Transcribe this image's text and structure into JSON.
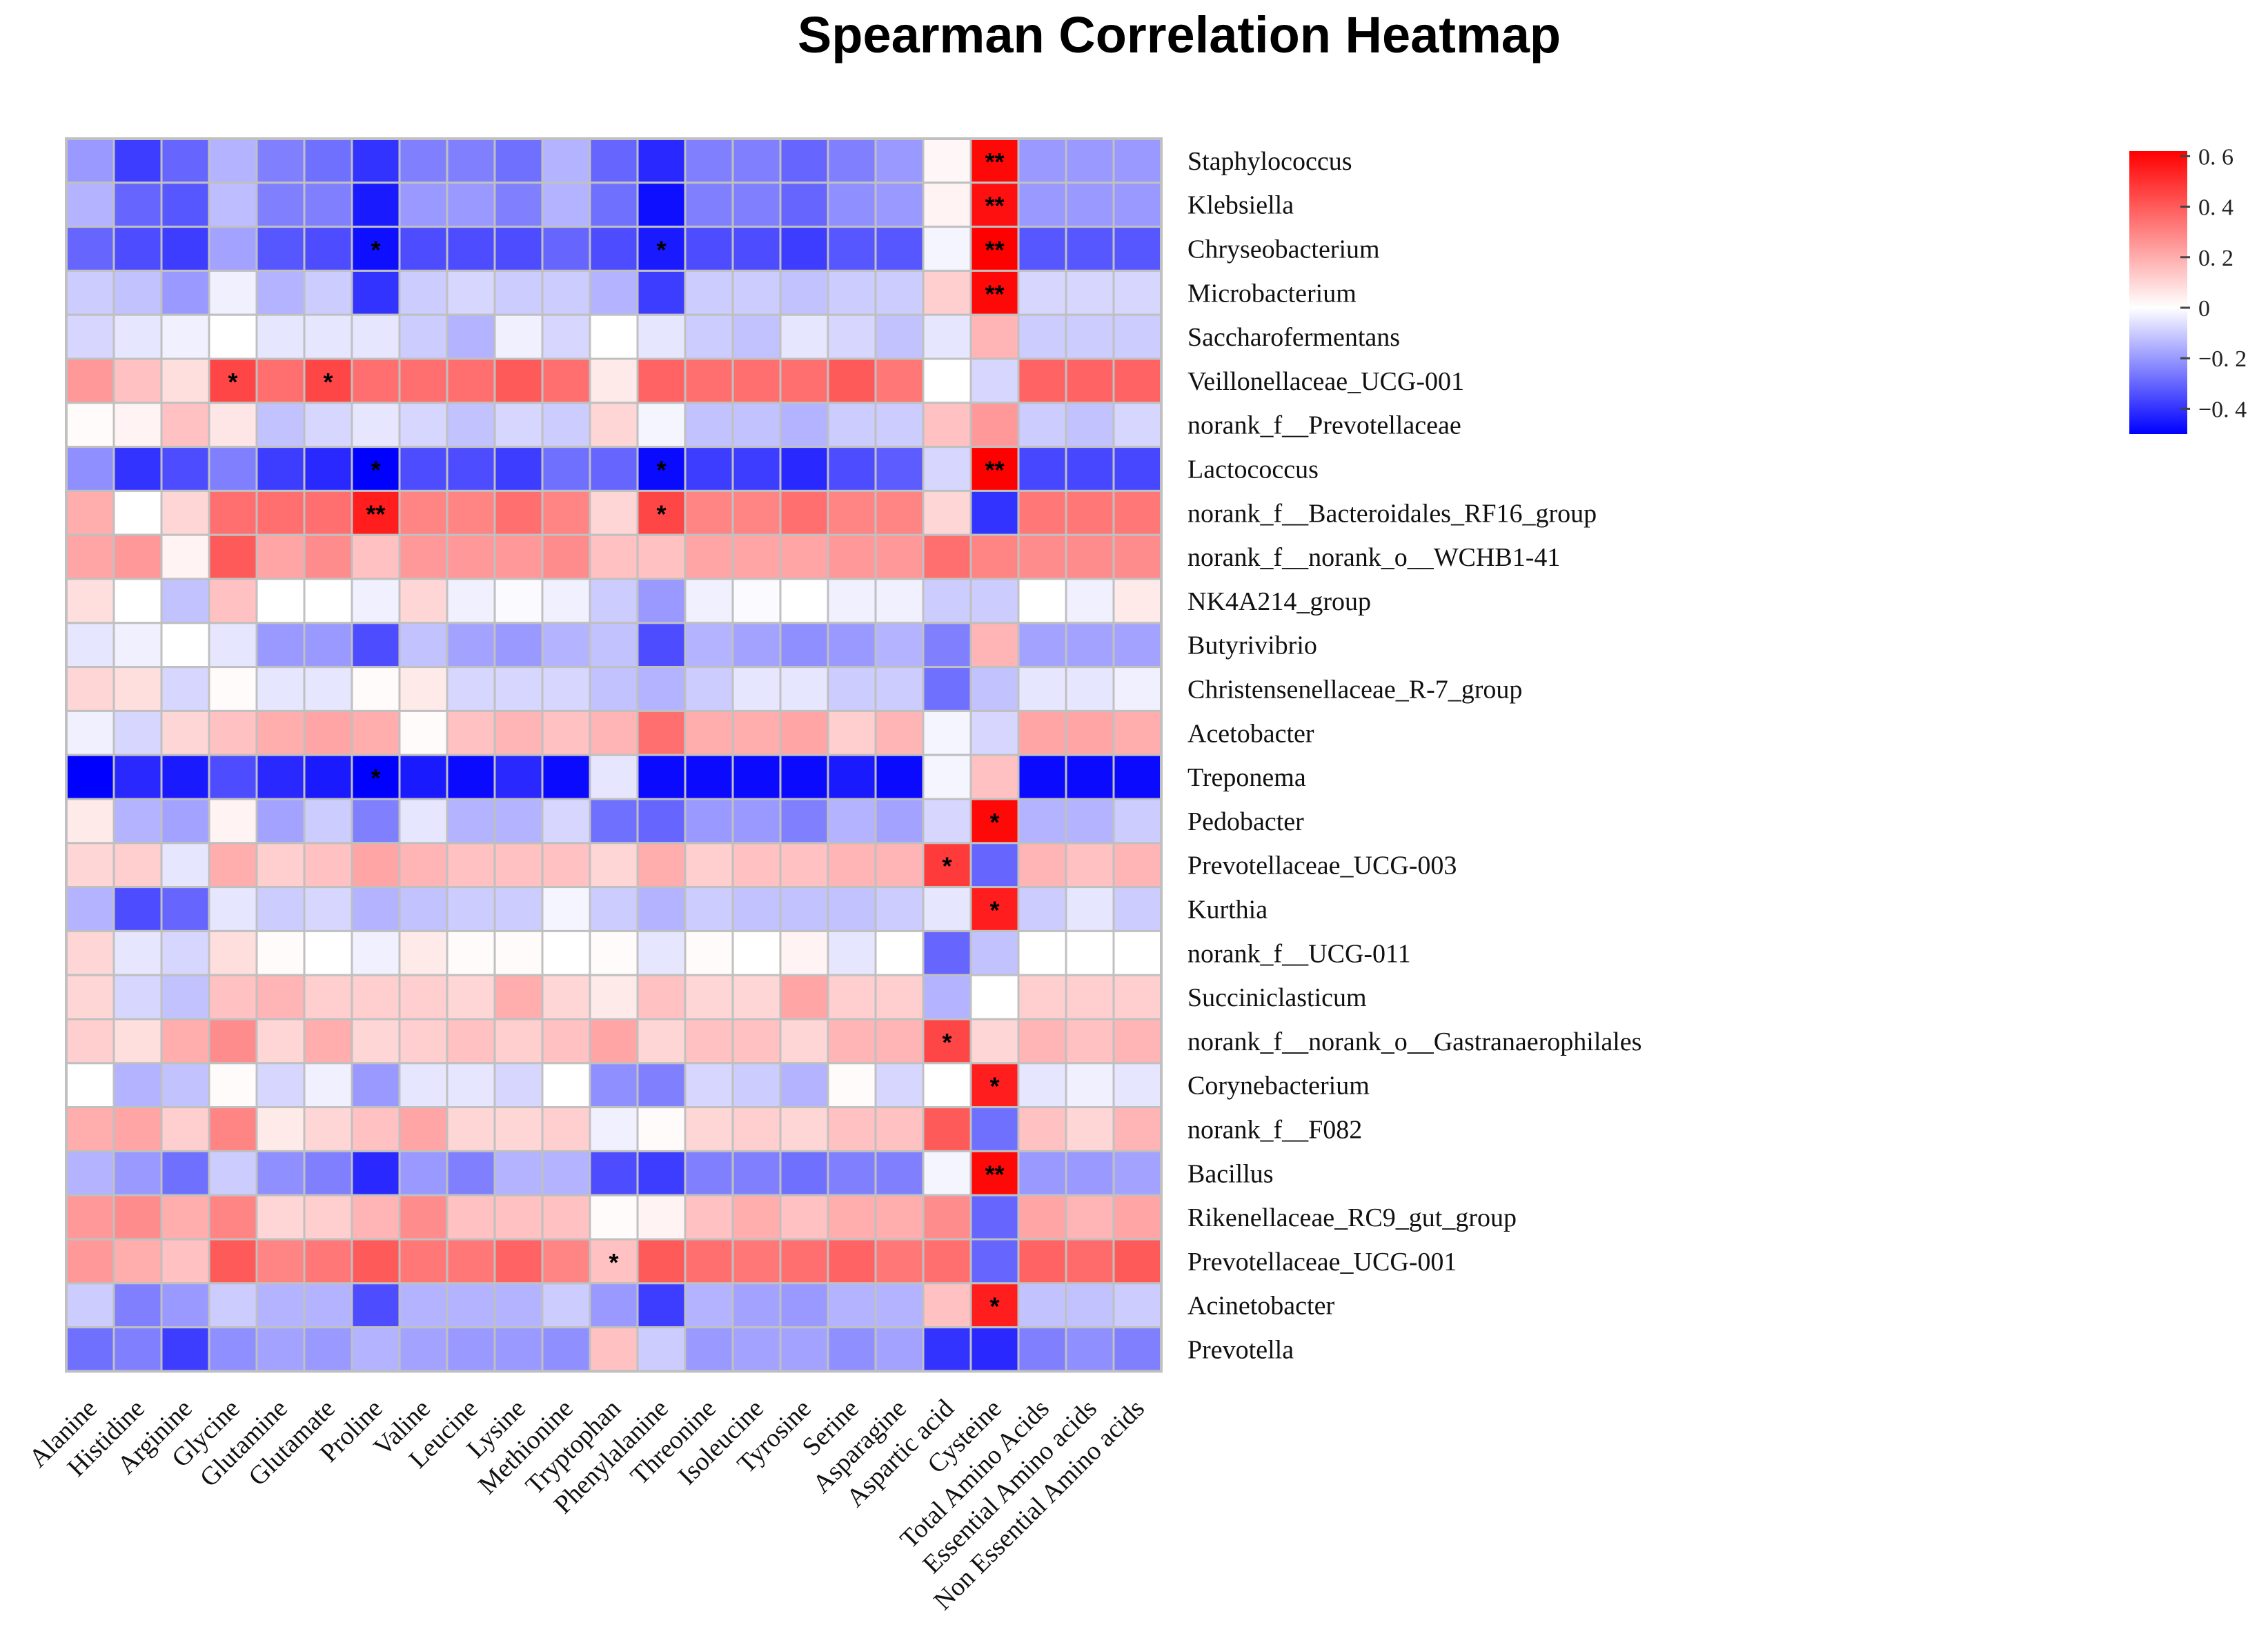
{
  "chart_data": {
    "type": "heatmap",
    "title": "Spearman Correlation Heatmap",
    "columns": [
      "Alanine",
      "Histidine",
      "Arginine",
      "Glycine",
      "Glutamine",
      "Glutamate",
      "Proline",
      "Valine",
      "Leucine",
      "Lysine",
      "Methionine",
      "Tryptophan",
      "Phenylalanine",
      "Threonine",
      "Isoleucine",
      "Tyrosine",
      "Serine",
      "Asparagine",
      "Aspartic acid",
      "Cysteine",
      "Total Amino Acids",
      "Essential Amino acids",
      "Non Essential Amino acids"
    ],
    "rows": [
      "Staphylococcus",
      "Klebsiella",
      "Chryseobacterium",
      "Microbacterium",
      "Saccharofermentans",
      "Veillonellaceae_UCG-001",
      "norank_f__Prevotellaceae",
      "Lactococcus",
      "norank_f__Bacteroidales_RF16_group",
      "norank_f__norank_o__WCHB1-41",
      "NK4A214_group",
      "Butyrivibrio",
      "Christensenellaceae_R-7_group",
      "Acetobacter",
      "Treponema",
      "Pedobacter",
      "Prevotellaceae_UCG-003",
      "Kurthia",
      "norank_f__UCG-011",
      "Succiniclasticum",
      "norank_f__norank_o__Gastranaerophilales",
      "Corynebacterium",
      "norank_f__F082",
      "Bacillus",
      "Rikenellaceae_RC9_gut_group",
      "Prevotellaceae_UCG-001",
      "Acinetobacter",
      "Prevotella"
    ],
    "values": [
      [
        -0.2,
        -0.38,
        -0.3,
        -0.15,
        -0.25,
        -0.28,
        -0.4,
        -0.25,
        -0.25,
        -0.28,
        -0.15,
        -0.3,
        -0.42,
        -0.25,
        -0.25,
        -0.3,
        -0.25,
        -0.2,
        0.02,
        0.6,
        -0.2,
        -0.2,
        -0.2
      ],
      [
        -0.15,
        -0.3,
        -0.33,
        -0.13,
        -0.25,
        -0.25,
        -0.45,
        -0.2,
        -0.2,
        -0.25,
        -0.15,
        -0.28,
        -0.47,
        -0.25,
        -0.25,
        -0.3,
        -0.22,
        -0.2,
        0.03,
        0.58,
        -0.2,
        -0.2,
        -0.2
      ],
      [
        -0.3,
        -0.35,
        -0.38,
        -0.18,
        -0.33,
        -0.35,
        -0.47,
        -0.35,
        -0.35,
        -0.35,
        -0.3,
        -0.35,
        -0.45,
        -0.35,
        -0.35,
        -0.38,
        -0.33,
        -0.33,
        -0.02,
        0.62,
        -0.33,
        -0.33,
        -0.33
      ],
      [
        -0.1,
        -0.12,
        -0.2,
        -0.03,
        -0.15,
        -0.1,
        -0.4,
        -0.1,
        -0.08,
        -0.1,
        -0.1,
        -0.15,
        -0.38,
        -0.1,
        -0.1,
        -0.12,
        -0.1,
        -0.1,
        0.12,
        0.6,
        -0.08,
        -0.08,
        -0.08
      ],
      [
        -0.08,
        -0.05,
        -0.03,
        0.0,
        -0.05,
        -0.05,
        -0.05,
        -0.1,
        -0.15,
        -0.03,
        -0.08,
        0.0,
        -0.05,
        -0.1,
        -0.12,
        -0.05,
        -0.08,
        -0.12,
        -0.05,
        0.18,
        -0.1,
        -0.1,
        -0.1
      ],
      [
        0.25,
        0.15,
        0.08,
        0.45,
        0.35,
        0.45,
        0.35,
        0.35,
        0.35,
        0.4,
        0.35,
        0.05,
        0.38,
        0.35,
        0.35,
        0.35,
        0.4,
        0.33,
        0.0,
        -0.08,
        0.38,
        0.38,
        0.38
      ],
      [
        0.01,
        0.03,
        0.15,
        0.06,
        -0.12,
        -0.08,
        -0.05,
        -0.08,
        -0.12,
        -0.08,
        -0.1,
        0.1,
        -0.02,
        -0.12,
        -0.12,
        -0.15,
        -0.1,
        -0.1,
        0.15,
        0.25,
        -0.1,
        -0.12,
        -0.08
      ],
      [
        -0.22,
        -0.4,
        -0.35,
        -0.25,
        -0.38,
        -0.42,
        -0.5,
        -0.35,
        -0.35,
        -0.38,
        -0.28,
        -0.3,
        -0.48,
        -0.38,
        -0.38,
        -0.42,
        -0.35,
        -0.32,
        -0.08,
        0.62,
        -0.36,
        -0.36,
        -0.36
      ],
      [
        0.2,
        0.0,
        0.1,
        0.35,
        0.35,
        0.35,
        0.55,
        0.3,
        0.3,
        0.35,
        0.3,
        0.1,
        0.45,
        0.3,
        0.3,
        0.35,
        0.3,
        0.3,
        0.1,
        -0.4,
        0.33,
        0.33,
        0.33
      ],
      [
        0.22,
        0.25,
        0.03,
        0.4,
        0.22,
        0.28,
        0.15,
        0.25,
        0.25,
        0.25,
        0.28,
        0.15,
        0.15,
        0.22,
        0.22,
        0.22,
        0.25,
        0.25,
        0.35,
        0.3,
        0.28,
        0.28,
        0.28
      ],
      [
        0.08,
        0.0,
        -0.12,
        0.15,
        0.0,
        0.0,
        -0.03,
        0.1,
        -0.03,
        -0.01,
        -0.03,
        -0.1,
        -0.2,
        -0.03,
        -0.01,
        0.0,
        -0.03,
        -0.03,
        -0.1,
        -0.1,
        0.0,
        -0.03,
        0.05
      ],
      [
        -0.05,
        -0.03,
        0.0,
        -0.05,
        -0.2,
        -0.2,
        -0.35,
        -0.12,
        -0.18,
        -0.2,
        -0.15,
        -0.12,
        -0.35,
        -0.15,
        -0.18,
        -0.22,
        -0.2,
        -0.15,
        -0.25,
        0.18,
        -0.18,
        -0.18,
        -0.18
      ],
      [
        0.1,
        0.08,
        -0.08,
        0.01,
        -0.05,
        -0.05,
        0.01,
        0.05,
        -0.08,
        -0.08,
        -0.08,
        -0.12,
        -0.15,
        -0.1,
        -0.05,
        -0.05,
        -0.1,
        -0.1,
        -0.28,
        -0.12,
        -0.05,
        -0.05,
        -0.03
      ],
      [
        -0.03,
        -0.08,
        0.1,
        0.15,
        0.2,
        0.22,
        0.2,
        0.01,
        0.15,
        0.18,
        0.15,
        0.18,
        0.35,
        0.2,
        0.2,
        0.22,
        0.12,
        0.18,
        -0.02,
        -0.08,
        0.22,
        0.22,
        0.2
      ],
      [
        -0.5,
        -0.42,
        -0.45,
        -0.35,
        -0.42,
        -0.45,
        -0.5,
        -0.45,
        -0.48,
        -0.42,
        -0.48,
        -0.05,
        -0.48,
        -0.48,
        -0.48,
        -0.48,
        -0.45,
        -0.48,
        -0.02,
        0.15,
        -0.48,
        -0.48,
        -0.48
      ],
      [
        0.05,
        -0.15,
        -0.18,
        0.03,
        -0.18,
        -0.1,
        -0.25,
        -0.05,
        -0.15,
        -0.15,
        -0.08,
        -0.28,
        -0.3,
        -0.2,
        -0.2,
        -0.25,
        -0.15,
        -0.18,
        -0.08,
        0.6,
        -0.15,
        -0.15,
        -0.1
      ],
      [
        0.1,
        0.12,
        -0.05,
        0.2,
        0.12,
        0.15,
        0.22,
        0.18,
        0.15,
        0.15,
        0.15,
        0.1,
        0.2,
        0.12,
        0.15,
        0.15,
        0.18,
        0.18,
        0.48,
        -0.3,
        0.18,
        0.15,
        0.18
      ],
      [
        -0.15,
        -0.35,
        -0.3,
        -0.05,
        -0.1,
        -0.08,
        -0.15,
        -0.12,
        -0.1,
        -0.1,
        -0.02,
        -0.1,
        -0.15,
        -0.1,
        -0.12,
        -0.12,
        -0.12,
        -0.1,
        -0.05,
        0.55,
        -0.1,
        -0.05,
        -0.1
      ],
      [
        0.1,
        -0.05,
        -0.08,
        0.08,
        0.01,
        0.0,
        -0.03,
        0.05,
        0.01,
        0.01,
        0.0,
        0.01,
        -0.05,
        0.01,
        0.0,
        0.03,
        -0.05,
        0.0,
        -0.3,
        -0.12,
        0.0,
        0.0,
        0.0
      ],
      [
        0.1,
        -0.08,
        -0.12,
        0.15,
        0.18,
        0.12,
        0.12,
        0.12,
        0.1,
        0.2,
        0.1,
        0.05,
        0.15,
        0.1,
        0.1,
        0.22,
        0.12,
        0.12,
        -0.15,
        0.0,
        0.12,
        0.12,
        0.12
      ],
      [
        0.12,
        0.08,
        0.2,
        0.28,
        0.1,
        0.2,
        0.1,
        0.12,
        0.15,
        0.12,
        0.15,
        0.22,
        0.1,
        0.15,
        0.15,
        0.1,
        0.18,
        0.18,
        0.45,
        0.1,
        0.18,
        0.15,
        0.18
      ],
      [
        0.0,
        -0.15,
        -0.12,
        0.01,
        -0.08,
        -0.03,
        -0.2,
        -0.05,
        -0.05,
        -0.08,
        0.0,
        -0.22,
        -0.25,
        -0.08,
        -0.1,
        -0.15,
        0.01,
        -0.08,
        0.0,
        0.55,
        -0.05,
        -0.03,
        -0.05
      ],
      [
        0.2,
        0.22,
        0.12,
        0.3,
        0.05,
        0.1,
        0.15,
        0.22,
        0.1,
        0.1,
        0.12,
        -0.03,
        0.01,
        0.1,
        0.12,
        0.1,
        0.15,
        0.15,
        0.4,
        -0.28,
        0.15,
        0.1,
        0.18
      ],
      [
        -0.15,
        -0.2,
        -0.28,
        -0.1,
        -0.22,
        -0.25,
        -0.42,
        -0.2,
        -0.25,
        -0.15,
        -0.15,
        -0.35,
        -0.38,
        -0.25,
        -0.25,
        -0.28,
        -0.25,
        -0.25,
        -0.02,
        0.6,
        -0.2,
        -0.2,
        -0.18
      ],
      [
        0.25,
        0.28,
        0.2,
        0.3,
        0.1,
        0.12,
        0.18,
        0.28,
        0.15,
        0.15,
        0.15,
        0.01,
        0.03,
        0.15,
        0.2,
        0.15,
        0.2,
        0.2,
        0.28,
        -0.3,
        0.22,
        0.18,
        0.22
      ],
      [
        0.25,
        0.2,
        0.15,
        0.4,
        0.3,
        0.33,
        0.4,
        0.33,
        0.33,
        0.38,
        0.3,
        0.15,
        0.4,
        0.35,
        0.33,
        0.35,
        0.38,
        0.33,
        0.35,
        -0.3,
        0.38,
        0.36,
        0.4
      ],
      [
        -0.1,
        -0.25,
        -0.2,
        -0.1,
        -0.15,
        -0.15,
        -0.35,
        -0.15,
        -0.15,
        -0.15,
        -0.1,
        -0.2,
        -0.38,
        -0.15,
        -0.18,
        -0.2,
        -0.15,
        -0.15,
        0.15,
        0.55,
        -0.12,
        -0.12,
        -0.1
      ],
      [
        -0.28,
        -0.25,
        -0.38,
        -0.22,
        -0.18,
        -0.2,
        -0.15,
        -0.18,
        -0.2,
        -0.2,
        -0.22,
        0.15,
        -0.1,
        -0.2,
        -0.18,
        -0.18,
        -0.22,
        -0.18,
        -0.4,
        -0.42,
        -0.25,
        -0.22,
        -0.25
      ]
    ],
    "annotations": [
      {
        "row": 0,
        "col": 19,
        "text": "**"
      },
      {
        "row": 1,
        "col": 19,
        "text": "**"
      },
      {
        "row": 2,
        "col": 6,
        "text": "*"
      },
      {
        "row": 2,
        "col": 12,
        "text": "*"
      },
      {
        "row": 2,
        "col": 19,
        "text": "**"
      },
      {
        "row": 3,
        "col": 19,
        "text": "**"
      },
      {
        "row": 5,
        "col": 3,
        "text": "*"
      },
      {
        "row": 5,
        "col": 5,
        "text": "*"
      },
      {
        "row": 7,
        "col": 6,
        "text": "*"
      },
      {
        "row": 7,
        "col": 12,
        "text": "*"
      },
      {
        "row": 7,
        "col": 19,
        "text": "**"
      },
      {
        "row": 8,
        "col": 6,
        "text": "**"
      },
      {
        "row": 8,
        "col": 12,
        "text": "*"
      },
      {
        "row": 14,
        "col": 6,
        "text": "*"
      },
      {
        "row": 15,
        "col": 19,
        "text": "*"
      },
      {
        "row": 16,
        "col": 18,
        "text": "*"
      },
      {
        "row": 17,
        "col": 19,
        "text": "*"
      },
      {
        "row": 20,
        "col": 18,
        "text": "*"
      },
      {
        "row": 21,
        "col": 19,
        "text": "*"
      },
      {
        "row": 23,
        "col": 19,
        "text": "**"
      },
      {
        "row": 25,
        "col": 11,
        "text": "*"
      },
      {
        "row": 26,
        "col": 19,
        "text": "*"
      }
    ],
    "colorbar": {
      "vmin": -0.5,
      "vmax": 0.62,
      "ticks": [
        0.6,
        0.4,
        0.2,
        0,
        -0.2,
        -0.4
      ],
      "tick_labels": [
        "0. 6",
        "0. 4",
        "0. 2",
        "0",
        "−0. 2",
        "−0. 4"
      ],
      "colors": {
        "negative": "#0000ff",
        "zero": "#ffffff",
        "positive": "#ff0000"
      }
    },
    "grid_color": "#c0c0c0"
  }
}
